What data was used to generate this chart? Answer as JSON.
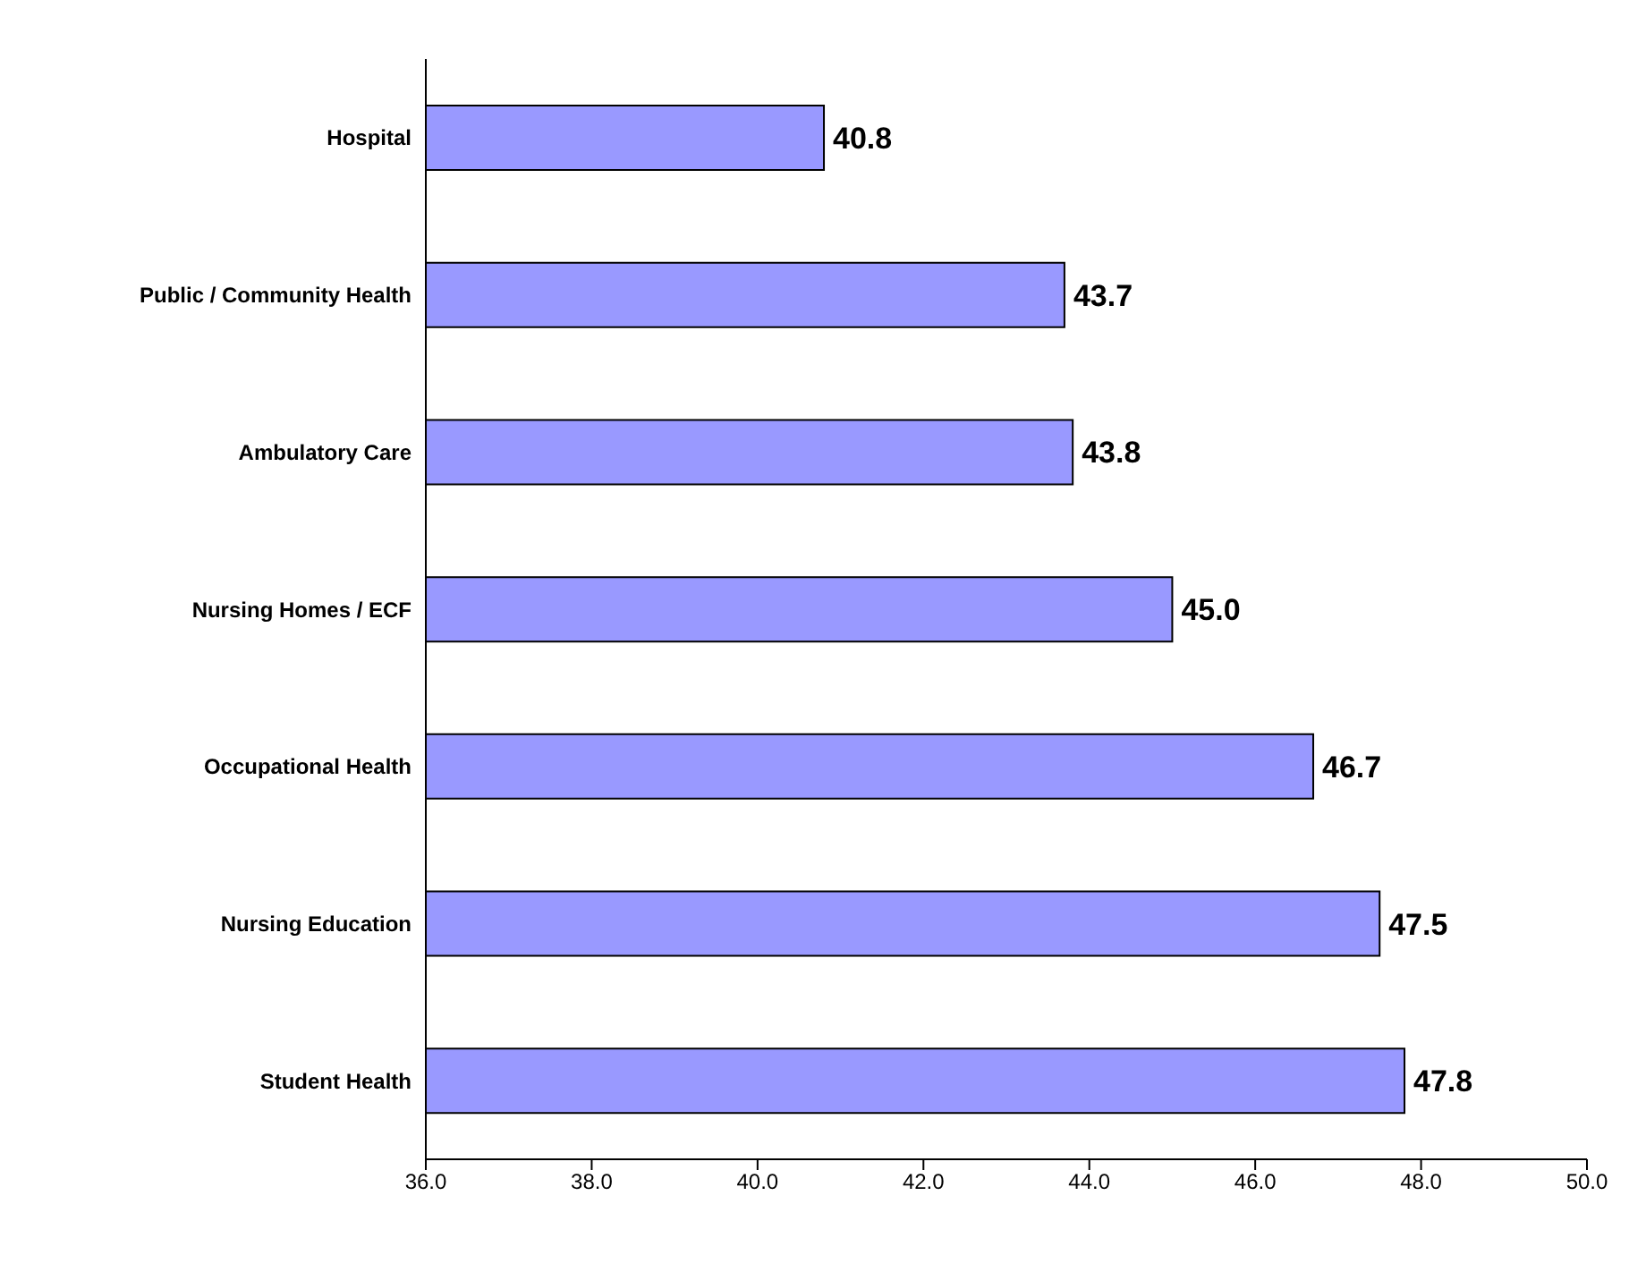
{
  "chart_data": {
    "type": "bar",
    "orientation": "horizontal",
    "categories": [
      "Hospital",
      "Public / Community Health",
      "Ambulatory Care",
      "Nursing Homes / ECF",
      "Occupational Health",
      "Nursing Education",
      "Student Health"
    ],
    "values": [
      40.8,
      43.7,
      43.8,
      45.0,
      46.7,
      47.5,
      47.8
    ],
    "value_labels": [
      "40.8",
      "43.7",
      "43.8",
      "45.0",
      "46.7",
      "47.5",
      "47.8"
    ],
    "color": "#9999ff",
    "xlim": [
      36,
      50
    ],
    "xticks": [
      {
        "value": 36,
        "label": "36.0"
      },
      {
        "value": 38,
        "label": "38.0"
      },
      {
        "value": 40,
        "label": "40.0"
      },
      {
        "value": 42,
        "label": "42.0"
      },
      {
        "value": 44,
        "label": "44.0"
      },
      {
        "value": 46,
        "label": "46.0"
      },
      {
        "value": 48,
        "label": "48.0"
      },
      {
        "value": 50,
        "label": "50.0"
      }
    ],
    "grid": false,
    "legend": false
  }
}
